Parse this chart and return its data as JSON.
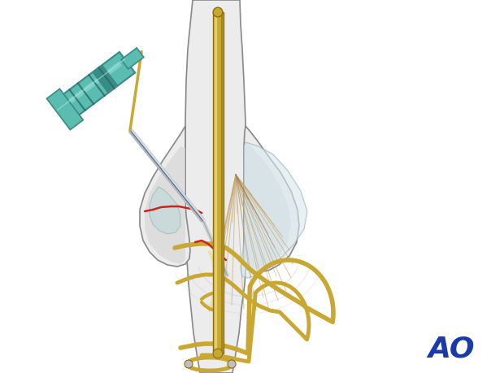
{
  "bg_color": "#ffffff",
  "bone_color": "#ececec",
  "bone_outline": "#888888",
  "bone_inner": "#e0e0e0",
  "condyle_color": "#e0e0e0",
  "condyle_right_color": "#d8d8d8",
  "wire_color": "#c8a832",
  "wire_highlight": "#e8cc50",
  "wire_dark": "#8a6e10",
  "wire_light": "#f0dd80",
  "needle_color": "#b0b8c0",
  "needle_dark": "#606878",
  "needle_highlight": "#dde8f0",
  "syringe_body": "#5bbcb0",
  "syringe_dark": "#3a8a85",
  "syringe_light": "#88d8d0",
  "syringe_very_dark": "#2a6868",
  "fracture_color": "#cc2222",
  "tendon_color": "#c8a870",
  "tendon_dark": "#a08050",
  "ao_color": "#1a3aaa",
  "shadow_color": "#c0c8d0"
}
